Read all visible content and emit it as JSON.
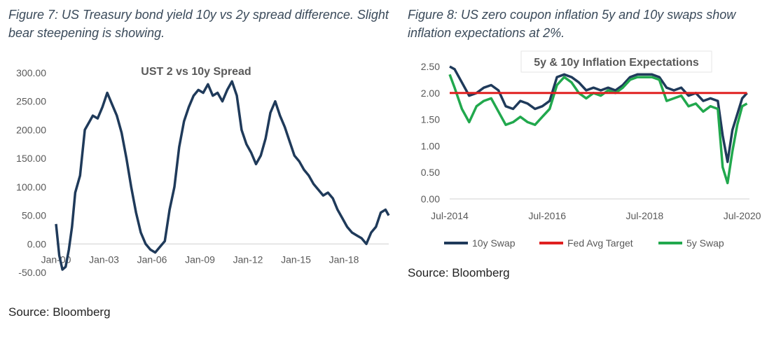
{
  "captions": {
    "left": "Figure 7: US Treasury bond yield 10y vs 2y spread difference. Slight bear steepening is showing.",
    "right": "Figure 8: US zero coupon inflation 5y and 10y swaps show inflation expectations at 2%."
  },
  "sources": {
    "left": "Source: Bloomberg",
    "right": "Source: Bloomberg"
  },
  "chart_data": [
    {
      "type": "line",
      "title": "UST 2 vs 10y Spread",
      "xlabel": "",
      "ylabel": "",
      "ylim": [
        -50,
        300
      ],
      "yticks": [
        "-50.00",
        "0.00",
        "50.00",
        "100.00",
        "150.00",
        "200.00",
        "250.00",
        "300.00"
      ],
      "xticks": [
        "Jan-00",
        "Jan-03",
        "Jan-06",
        "Jan-09",
        "Jan-12",
        "Jan-15",
        "Jan-18"
      ],
      "xtick_years": [
        2000,
        2003,
        2006,
        2009,
        2012,
        2015,
        2018
      ],
      "xlim_years": [
        2000,
        2020.8
      ],
      "grid": false,
      "colors": {
        "line": "#1f3a5a"
      },
      "series": [
        {
          "name": "",
          "x": [
            2000.0,
            2000.2,
            2000.4,
            2000.6,
            2000.8,
            2001.0,
            2001.2,
            2001.5,
            2001.8,
            2002.0,
            2002.3,
            2002.6,
            2002.9,
            2003.2,
            2003.5,
            2003.8,
            2004.1,
            2004.4,
            2004.7,
            2005.0,
            2005.3,
            2005.6,
            2005.9,
            2006.2,
            2006.5,
            2006.8,
            2007.1,
            2007.4,
            2007.7,
            2008.0,
            2008.3,
            2008.6,
            2008.9,
            2009.2,
            2009.5,
            2009.8,
            2010.1,
            2010.4,
            2010.7,
            2011.0,
            2011.3,
            2011.6,
            2011.9,
            2012.2,
            2012.5,
            2012.8,
            2013.1,
            2013.4,
            2013.7,
            2014.0,
            2014.3,
            2014.6,
            2014.9,
            2015.2,
            2015.5,
            2015.8,
            2016.1,
            2016.4,
            2016.7,
            2017.0,
            2017.3,
            2017.6,
            2017.9,
            2018.2,
            2018.5,
            2018.8,
            2019.1,
            2019.4,
            2019.7,
            2020.0,
            2020.3,
            2020.6,
            2020.8
          ],
          "values": [
            35,
            -20,
            -45,
            -40,
            -10,
            30,
            90,
            120,
            200,
            210,
            225,
            220,
            240,
            265,
            245,
            225,
            195,
            150,
            100,
            55,
            20,
            0,
            -10,
            -15,
            -5,
            5,
            60,
            100,
            170,
            215,
            240,
            260,
            270,
            265,
            280,
            260,
            265,
            250,
            270,
            285,
            260,
            200,
            175,
            160,
            140,
            155,
            185,
            230,
            250,
            225,
            205,
            180,
            155,
            145,
            130,
            120,
            105,
            95,
            85,
            90,
            80,
            60,
            45,
            30,
            20,
            15,
            10,
            0,
            20,
            30,
            55,
            60,
            50
          ]
        }
      ]
    },
    {
      "type": "line",
      "title": "5y & 10y Inflation Expectations",
      "xlabel": "",
      "ylabel": "",
      "ylim": [
        0,
        2.5
      ],
      "yticks": [
        "0.00",
        "0.50",
        "1.00",
        "1.50",
        "2.00",
        "2.50"
      ],
      "xticks": [
        "Jul-2014",
        "Jul-2016",
        "Jul-2018",
        "Jul-2020"
      ],
      "xtick_years": [
        2014.5,
        2016.5,
        2018.5,
        2020.5
      ],
      "xlim_years": [
        2014.5,
        2020.65
      ],
      "grid": false,
      "legend": "bottom",
      "colors": {
        "10y": "#1f3a5a",
        "fed": "#e02020",
        "5y": "#21a84d"
      },
      "series": [
        {
          "name": "10y Swap",
          "x": [
            2014.5,
            2014.6,
            2014.75,
            2014.9,
            2015.05,
            2015.2,
            2015.35,
            2015.5,
            2015.65,
            2015.8,
            2015.95,
            2016.1,
            2016.25,
            2016.4,
            2016.55,
            2016.7,
            2016.85,
            2017.0,
            2017.15,
            2017.3,
            2017.45,
            2017.6,
            2017.75,
            2017.9,
            2018.05,
            2018.2,
            2018.35,
            2018.5,
            2018.65,
            2018.8,
            2018.95,
            2019.1,
            2019.25,
            2019.4,
            2019.55,
            2019.7,
            2019.85,
            2020.0,
            2020.1,
            2020.2,
            2020.3,
            2020.4,
            2020.5,
            2020.6
          ],
          "values": [
            2.5,
            2.45,
            2.2,
            1.95,
            2.0,
            2.1,
            2.15,
            2.05,
            1.75,
            1.7,
            1.85,
            1.8,
            1.7,
            1.75,
            1.85,
            2.3,
            2.35,
            2.3,
            2.2,
            2.05,
            2.1,
            2.05,
            2.1,
            2.05,
            2.15,
            2.3,
            2.35,
            2.35,
            2.35,
            2.3,
            2.1,
            2.05,
            2.1,
            1.95,
            2.0,
            1.85,
            1.9,
            1.85,
            1.2,
            0.7,
            1.3,
            1.6,
            1.9,
            2.0
          ]
        },
        {
          "name": "Fed Avg Target",
          "x": [
            2014.5,
            2020.6
          ],
          "values": [
            2.0,
            2.0
          ]
        },
        {
          "name": "5y Swap",
          "x": [
            2014.5,
            2014.6,
            2014.75,
            2014.9,
            2015.05,
            2015.2,
            2015.35,
            2015.5,
            2015.65,
            2015.8,
            2015.95,
            2016.1,
            2016.25,
            2016.4,
            2016.55,
            2016.7,
            2016.85,
            2017.0,
            2017.15,
            2017.3,
            2017.45,
            2017.6,
            2017.75,
            2017.9,
            2018.05,
            2018.2,
            2018.35,
            2018.5,
            2018.65,
            2018.8,
            2018.95,
            2019.1,
            2019.25,
            2019.4,
            2019.55,
            2019.7,
            2019.85,
            2020.0,
            2020.1,
            2020.2,
            2020.3,
            2020.4,
            2020.5,
            2020.6
          ],
          "values": [
            2.35,
            2.1,
            1.7,
            1.45,
            1.75,
            1.85,
            1.9,
            1.65,
            1.4,
            1.45,
            1.55,
            1.45,
            1.4,
            1.55,
            1.7,
            2.15,
            2.3,
            2.2,
            2.0,
            1.9,
            2.0,
            1.95,
            2.05,
            2.0,
            2.1,
            2.25,
            2.3,
            2.3,
            2.3,
            2.25,
            1.85,
            1.9,
            1.95,
            1.75,
            1.8,
            1.65,
            1.75,
            1.7,
            0.6,
            0.3,
            0.9,
            1.4,
            1.75,
            1.8
          ]
        }
      ]
    }
  ]
}
